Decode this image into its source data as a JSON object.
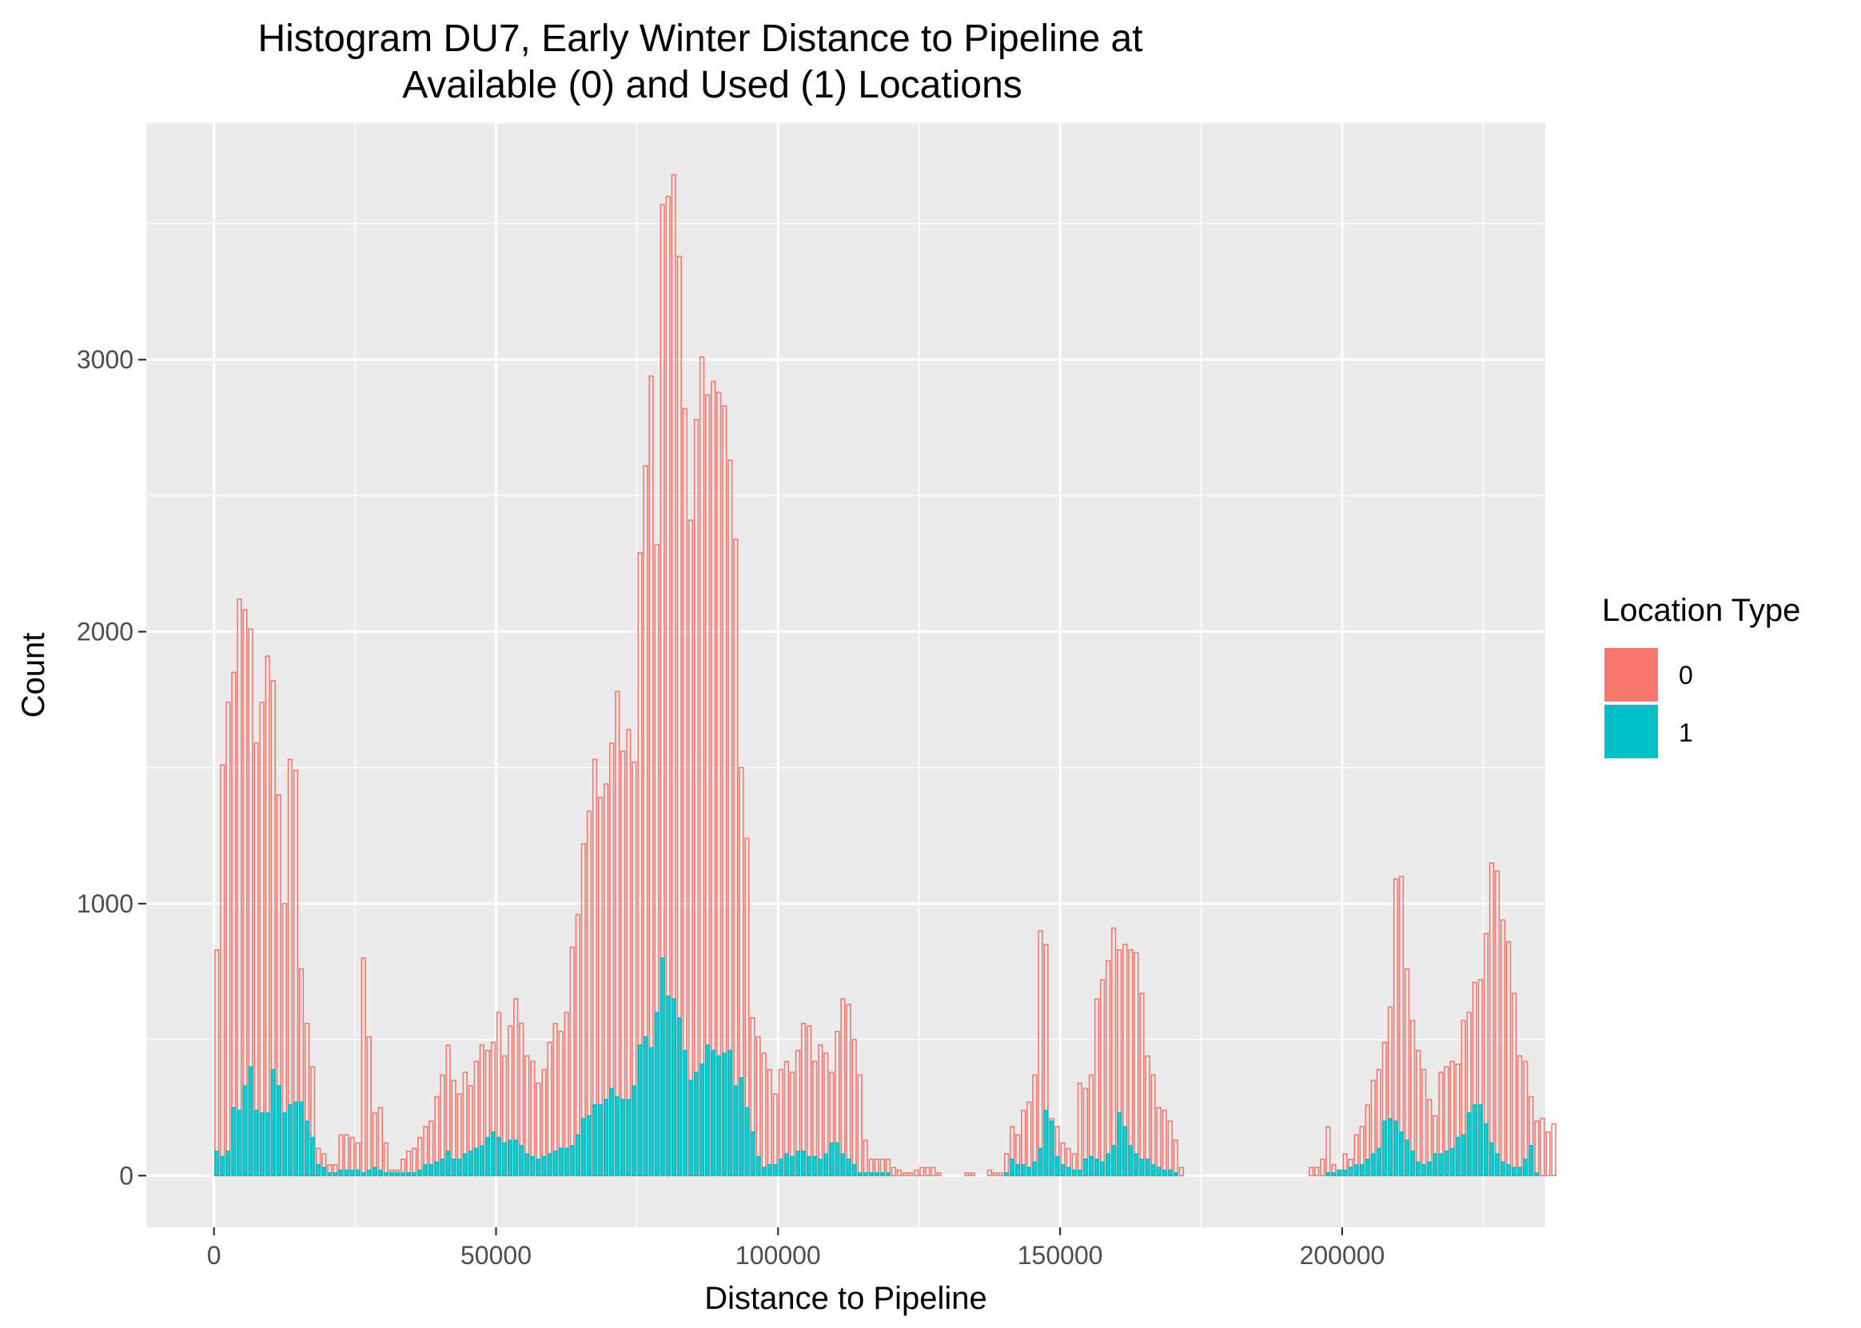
{
  "chart_data": {
    "type": "bar",
    "title_lines": [
      "Histogram DU7, Early Winter Distance to Pipeline at",
      "Available (0) and Used (1) Locations"
    ],
    "xlabel": "Distance to Pipeline",
    "ylabel": "Count",
    "xlim": [
      -12000,
      236000
    ],
    "ylim": [
      -190,
      3870
    ],
    "x_ticks": [
      0,
      50000,
      100000,
      150000,
      200000
    ],
    "x_tick_labels": [
      "0",
      "50000",
      "100000",
      "150000",
      "200000"
    ],
    "y_ticks": [
      0,
      1000,
      2000,
      3000
    ],
    "y_tick_labels": [
      "0",
      "1000",
      "2000",
      "3000"
    ],
    "grid": true,
    "legend": {
      "title": "Location Type",
      "position": "right",
      "entries": [
        {
          "label": "0",
          "color": "#F8766D"
        },
        {
          "label": "1",
          "color": "#00BFC4"
        }
      ]
    },
    "bin_start": 0,
    "bin_width": 1000,
    "series": [
      {
        "name": "0",
        "color": "#F8766D",
        "values": [
          830,
          1510,
          1740,
          1850,
          2120,
          2080,
          2010,
          1590,
          1740,
          1910,
          1820,
          1400,
          1000,
          1530,
          1490,
          760,
          560,
          400,
          100,
          80,
          40,
          40,
          150,
          150,
          140,
          120,
          800,
          510,
          230,
          250,
          120,
          20,
          20,
          60,
          90,
          100,
          140,
          180,
          200,
          290,
          370,
          480,
          350,
          300,
          380,
          330,
          420,
          480,
          460,
          490,
          600,
          440,
          550,
          650,
          560,
          440,
          420,
          340,
          390,
          490,
          560,
          530,
          600,
          840,
          960,
          1220,
          1340,
          1530,
          1390,
          1440,
          1590,
          1780,
          1560,
          1640,
          1520,
          2290,
          2610,
          2940,
          2320,
          3570,
          3600,
          3680,
          3380,
          2820,
          2410,
          2780,
          3010,
          2870,
          2920,
          2880,
          2830,
          2630,
          2340,
          1500,
          1240,
          580,
          510,
          450,
          390,
          300,
          390,
          420,
          380,
          460,
          560,
          550,
          420,
          480,
          450,
          380,
          530,
          650,
          630,
          500,
          370,
          130,
          60,
          60,
          60,
          60,
          30,
          20,
          10,
          10,
          20,
          30,
          30,
          30,
          10,
          0,
          0,
          0,
          0,
          10,
          10,
          0,
          0,
          20,
          10,
          10,
          80,
          180,
          150,
          240,
          270,
          370,
          900,
          850,
          210,
          180,
          120,
          100,
          80,
          340,
          320,
          370,
          650,
          720,
          790,
          910,
          830,
          850,
          830,
          820,
          670,
          440,
          370,
          250,
          240,
          200,
          130,
          30,
          0,
          0,
          0,
          0,
          0,
          0,
          0,
          0,
          0,
          0,
          0,
          0,
          0,
          0,
          0,
          0,
          0,
          0,
          0,
          0,
          0,
          0,
          30,
          30,
          60,
          180,
          40,
          20,
          80,
          60,
          150,
          180,
          260,
          350,
          390,
          490,
          620,
          1090,
          1100,
          760,
          570,
          460,
          390,
          280,
          220,
          380,
          400,
          420,
          410,
          570,
          600,
          710,
          720,
          890,
          1150,
          1120,
          940,
          860,
          670,
          440,
          420,
          290,
          200,
          210,
          160,
          190,
          0
        ]
      },
      {
        "name": "1",
        "color": "#00BFC4",
        "values": [
          90,
          70,
          90,
          250,
          240,
          330,
          400,
          240,
          230,
          230,
          390,
          330,
          230,
          260,
          270,
          270,
          200,
          140,
          40,
          30,
          10,
          10,
          20,
          20,
          20,
          20,
          10,
          20,
          30,
          20,
          10,
          10,
          10,
          10,
          10,
          10,
          20,
          40,
          40,
          50,
          60,
          90,
          60,
          60,
          80,
          90,
          100,
          110,
          140,
          160,
          140,
          120,
          130,
          130,
          110,
          80,
          70,
          60,
          70,
          80,
          90,
          100,
          100,
          110,
          150,
          210,
          220,
          260,
          260,
          280,
          320,
          290,
          280,
          280,
          330,
          480,
          510,
          470,
          600,
          800,
          660,
          650,
          580,
          460,
          350,
          380,
          410,
          480,
          460,
          440,
          450,
          460,
          330,
          360,
          250,
          160,
          70,
          30,
          40,
          40,
          60,
          80,
          70,
          90,
          90,
          70,
          70,
          60,
          80,
          120,
          120,
          80,
          60,
          40,
          10,
          10,
          10,
          10,
          10,
          10,
          0,
          0,
          0,
          0,
          0,
          0,
          0,
          0,
          0,
          0,
          0,
          0,
          0,
          0,
          0,
          0,
          0,
          0,
          0,
          0,
          10,
          60,
          40,
          40,
          30,
          50,
          100,
          240,
          200,
          70,
          40,
          30,
          20,
          20,
          60,
          70,
          60,
          50,
          80,
          110,
          230,
          180,
          110,
          80,
          60,
          60,
          40,
          30,
          20,
          20,
          10,
          0,
          0,
          0,
          0,
          0,
          0,
          0,
          0,
          0,
          0,
          0,
          0,
          0,
          0,
          0,
          0,
          0,
          0,
          0,
          0,
          0,
          0,
          0,
          0,
          0,
          0,
          10,
          10,
          20,
          20,
          30,
          40,
          40,
          60,
          80,
          100,
          200,
          210,
          200,
          160,
          130,
          90,
          50,
          40,
          50,
          80,
          80,
          90,
          100,
          140,
          150,
          230,
          260,
          260,
          190,
          120,
          80,
          50,
          40,
          30,
          30,
          60,
          110,
          10
        ]
      }
    ]
  }
}
